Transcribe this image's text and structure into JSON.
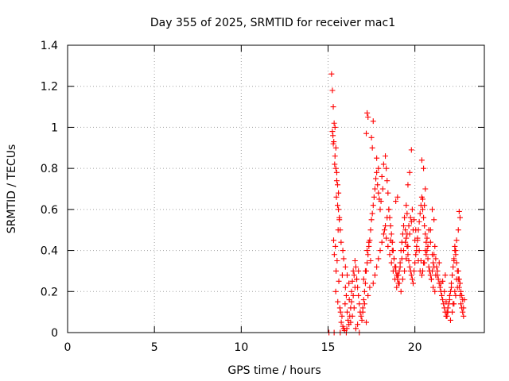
{
  "chart_data": {
    "type": "scatter",
    "title": "Day 355 of 2025, SRMTID for receiver mac1",
    "xlabel": "GPS time / hours",
    "ylabel": "SRMTID / TECUs",
    "xlim": [
      0,
      24
    ],
    "ylim": [
      0,
      1.4
    ],
    "xticks": [
      0,
      5,
      10,
      15,
      20
    ],
    "yticks": [
      0,
      0.2,
      0.4,
      0.6,
      0.8,
      1,
      1.2,
      1.4
    ],
    "ytick_labels": [
      "0",
      "0.2",
      "0.4",
      "0.6",
      "0.8",
      "1",
      "1.2",
      "1.4"
    ],
    "grid": true,
    "marker": "plus",
    "marker_color": "#ff0000",
    "series": [
      {
        "x": [
          15.05,
          15.35,
          15.7,
          16.05,
          16.8,
          15.2,
          15.25,
          15.3,
          15.35,
          15.28,
          15.33,
          15.4,
          15.45,
          15.38,
          15.5,
          15.55,
          15.48,
          15.6,
          15.65,
          15.58,
          15.32,
          15.42,
          15.36,
          15.52,
          15.46,
          15.62,
          15.44,
          15.56,
          15.68,
          15.72,
          15.8,
          15.76,
          15.85,
          15.9,
          15.95,
          15.82,
          16.0,
          16.05,
          15.98,
          16.1,
          16.15,
          16.2,
          16.08,
          16.25,
          16.3,
          16.22,
          16.35,
          16.4,
          16.45,
          16.5,
          16.55,
          16.6,
          16.65,
          16.7,
          16.75,
          16.8,
          16.85,
          16.9,
          16.95,
          17.0,
          17.05,
          17.1,
          17.15,
          17.2,
          17.25,
          17.3,
          17.35,
          17.4,
          17.45,
          17.5,
          17.55,
          17.6,
          17.65,
          17.7,
          17.75,
          17.8,
          17.85,
          17.9,
          17.95,
          18.0,
          17.2,
          17.25,
          17.3,
          17.6,
          17.5,
          17.55,
          17.8,
          17.9,
          18.2,
          18.3,
          18.35,
          18.1,
          18.15,
          18.4,
          18.45,
          18.05,
          18.5,
          18.55,
          18.6,
          18.65,
          18.7,
          18.75,
          18.8,
          18.85,
          18.9,
          18.95,
          19.0,
          19.05,
          19.1,
          19.15,
          19.2,
          19.25,
          19.3,
          19.35,
          19.4,
          19.45,
          19.5,
          19.55,
          19.6,
          19.65,
          19.7,
          19.75,
          19.8,
          19.85,
          19.9,
          19.95,
          20.0,
          20.05,
          20.1,
          20.15,
          20.2,
          20.25,
          20.3,
          20.35,
          20.4,
          20.45,
          20.5,
          20.55,
          20.6,
          20.65,
          20.7,
          20.75,
          20.8,
          20.85,
          20.9,
          20.95,
          21.0,
          21.05,
          21.1,
          21.15,
          21.2,
          21.25,
          21.3,
          21.35,
          21.4,
          19.6,
          19.7,
          19.8,
          20.4,
          20.5,
          20.6,
          20.45,
          20.55,
          21.0,
          21.1,
          20.9,
          19.5,
          19.55,
          18.9,
          19.0,
          21.45,
          21.5,
          21.55,
          21.6,
          21.65,
          21.7,
          21.75,
          21.8,
          21.85,
          21.9,
          21.95,
          22.0,
          22.05,
          22.1,
          22.15,
          22.2,
          22.25,
          22.3,
          22.35,
          22.4,
          22.45,
          22.5,
          22.55,
          22.6,
          22.65,
          22.7,
          22.75,
          22.8,
          22.85,
          21.6,
          21.7,
          21.8,
          21.9,
          22.0,
          22.1,
          22.2,
          22.3,
          22.4,
          22.5,
          22.6,
          22.7,
          22.8,
          21.75,
          21.85,
          22.05,
          22.15,
          22.25,
          22.35,
          22.45,
          22.55,
          22.65,
          22.75,
          22.25,
          22.3,
          22.35,
          22.4,
          22.5,
          22.55,
          22.6,
          16.3,
          16.4,
          16.5,
          16.6,
          16.7,
          16.35,
          16.45,
          16.55,
          16.65,
          16.75,
          17.0,
          17.1,
          17.2,
          17.3,
          17.4,
          17.05,
          17.15,
          17.25,
          17.35,
          17.45,
          17.6,
          17.7,
          17.8,
          17.9,
          18.0,
          18.1,
          18.2,
          18.3,
          18.4,
          18.5,
          18.6,
          18.7,
          18.8,
          18.9,
          19.0,
          19.1,
          19.2,
          19.3,
          19.4,
          19.5,
          19.6,
          19.7,
          19.8,
          19.9,
          20.0,
          20.1,
          20.2,
          20.3,
          20.4,
          20.5,
          20.6,
          20.7,
          20.8,
          20.9,
          21.0,
          21.1,
          21.2,
          21.3,
          21.4,
          21.5,
          15.25,
          15.3,
          15.4,
          15.45,
          15.5,
          15.6,
          15.55,
          15.65,
          15.7,
          15.75,
          15.85,
          15.9,
          16.0,
          16.1,
          16.2,
          18.25,
          18.35,
          18.45,
          18.55,
          18.65,
          18.75,
          18.85,
          18.95,
          19.05,
          19.15,
          19.25,
          19.35,
          19.45,
          19.55,
          19.65,
          19.75,
          19.85,
          19.95,
          20.05,
          20.15,
          20.25,
          20.35,
          20.45,
          20.55,
          20.65,
          20.75,
          20.85,
          20.95,
          21.05,
          21.15
        ],
        "y": [
          0.0,
          0.0,
          0.0,
          0.0,
          0.0,
          1.26,
          1.18,
          1.1,
          1.02,
          0.96,
          0.93,
          1.0,
          0.9,
          0.82,
          0.78,
          0.72,
          0.66,
          0.6,
          0.55,
          0.5,
          0.45,
          0.42,
          0.38,
          0.35,
          0.3,
          0.25,
          0.2,
          0.15,
          0.12,
          0.1,
          0.08,
          0.05,
          0.03,
          0.02,
          0.01,
          0.28,
          0.22,
          0.18,
          0.14,
          0.1,
          0.06,
          0.04,
          0.02,
          0.08,
          0.12,
          0.16,
          0.2,
          0.25,
          0.3,
          0.28,
          0.35,
          0.32,
          0.26,
          0.22,
          0.18,
          0.14,
          0.1,
          0.08,
          0.06,
          0.12,
          0.16,
          0.2,
          0.24,
          0.3,
          0.34,
          0.38,
          0.42,
          0.45,
          0.5,
          0.55,
          0.58,
          0.62,
          0.66,
          0.7,
          0.75,
          0.78,
          0.72,
          0.68,
          0.65,
          0.6,
          0.97,
          1.07,
          1.05,
          1.03,
          0.95,
          0.9,
          0.85,
          0.8,
          0.82,
          0.86,
          0.8,
          0.76,
          0.7,
          0.74,
          0.68,
          0.64,
          0.6,
          0.56,
          0.52,
          0.48,
          0.44,
          0.4,
          0.36,
          0.32,
          0.3,
          0.28,
          0.26,
          0.24,
          0.3,
          0.34,
          0.4,
          0.44,
          0.48,
          0.52,
          0.56,
          0.5,
          0.46,
          0.42,
          0.38,
          0.35,
          0.32,
          0.3,
          0.28,
          0.26,
          0.24,
          0.3,
          0.34,
          0.38,
          0.42,
          0.46,
          0.5,
          0.54,
          0.58,
          0.62,
          0.66,
          0.6,
          0.56,
          0.52,
          0.48,
          0.44,
          0.4,
          0.36,
          0.32,
          0.3,
          0.28,
          0.26,
          0.3,
          0.34,
          0.38,
          0.42,
          0.36,
          0.32,
          0.28,
          0.26,
          0.24,
          0.72,
          0.78,
          0.89,
          0.84,
          0.8,
          0.7,
          0.65,
          0.62,
          0.6,
          0.55,
          0.5,
          0.62,
          0.58,
          0.64,
          0.66,
          0.22,
          0.2,
          0.18,
          0.16,
          0.14,
          0.12,
          0.1,
          0.08,
          0.1,
          0.12,
          0.14,
          0.16,
          0.2,
          0.24,
          0.28,
          0.32,
          0.36,
          0.4,
          0.38,
          0.34,
          0.3,
          0.26,
          0.22,
          0.18,
          0.14,
          0.12,
          0.1,
          0.08,
          0.16,
          0.25,
          0.2,
          0.15,
          0.1,
          0.18,
          0.22,
          0.14,
          0.2,
          0.26,
          0.3,
          0.24,
          0.18,
          0.12,
          0.28,
          0.08,
          0.06,
          0.1,
          0.14,
          0.18,
          0.22,
          0.26,
          0.2,
          0.16,
          0.35,
          0.42,
          0.4,
          0.45,
          0.5,
          0.59,
          0.56,
          0.05,
          0.08,
          0.12,
          0.02,
          0.04,
          0.15,
          0.18,
          0.22,
          0.26,
          0.3,
          0.1,
          0.14,
          0.05,
          0.18,
          0.22,
          0.26,
          0.3,
          0.4,
          0.44,
          0.35,
          0.24,
          0.28,
          0.32,
          0.36,
          0.4,
          0.44,
          0.48,
          0.52,
          0.56,
          0.6,
          0.45,
          0.4,
          0.36,
          0.32,
          0.28,
          0.24,
          0.2,
          0.26,
          0.3,
          0.36,
          0.42,
          0.48,
          0.54,
          0.5,
          0.45,
          0.4,
          0.35,
          0.3,
          0.28,
          0.34,
          0.4,
          0.46,
          0.5,
          0.44,
          0.38,
          0.32,
          0.28,
          0.3,
          0.34,
          0.24,
          0.98,
          0.92,
          0.86,
          0.8,
          0.74,
          0.68,
          0.62,
          0.56,
          0.5,
          0.44,
          0.4,
          0.36,
          0.32,
          0.28,
          0.24,
          0.5,
          0.46,
          0.42,
          0.38,
          0.34,
          0.3,
          0.26,
          0.22,
          0.28,
          0.32,
          0.36,
          0.4,
          0.44,
          0.48,
          0.52,
          0.56,
          0.6,
          0.55,
          0.5,
          0.45,
          0.4,
          0.35,
          0.3,
          0.34,
          0.38,
          0.42,
          0.3,
          0.26,
          0.22,
          0.2
        ]
      }
    ]
  }
}
